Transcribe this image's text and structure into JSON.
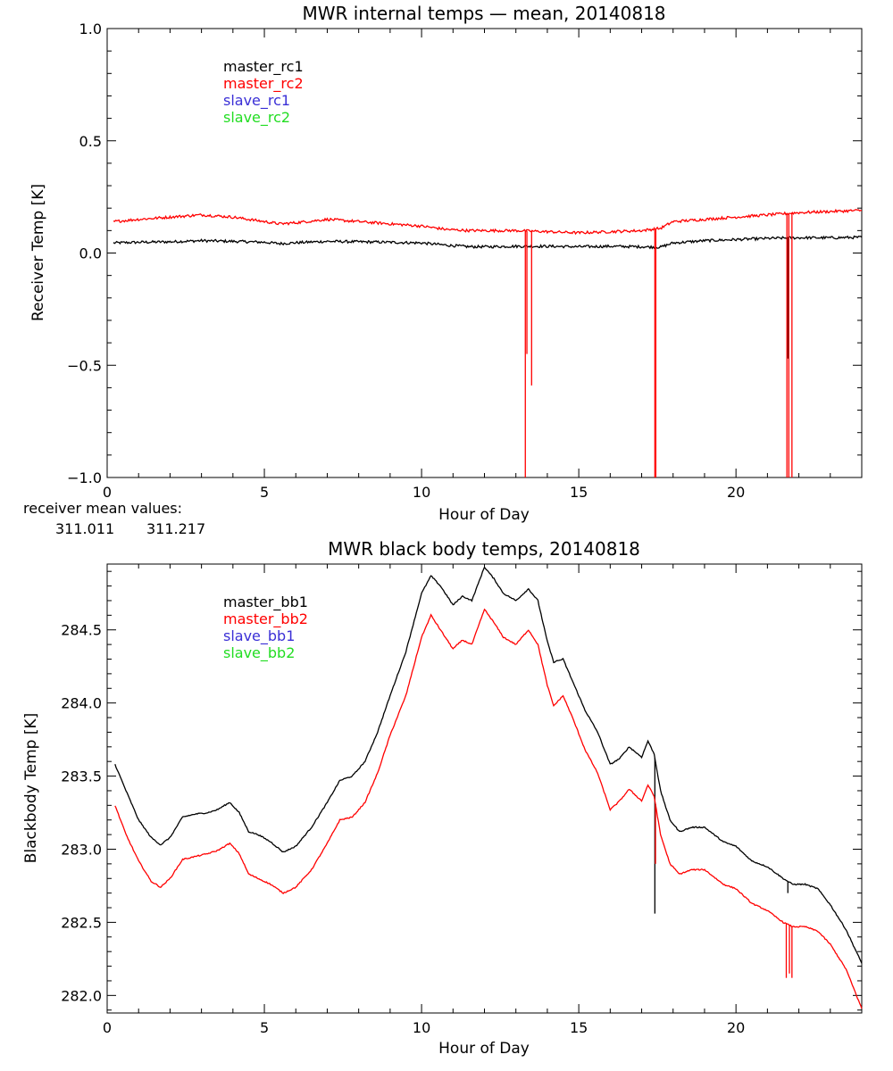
{
  "chart_data": [
    {
      "type": "line",
      "title": "MWR internal temps — mean, 20140818",
      "xlabel": "Hour of Day",
      "ylabel": "Receiver Temp [K]",
      "xlim": [
        0,
        24
      ],
      "ylim": [
        -1.0,
        1.0
      ],
      "x_ticks": [
        0,
        5,
        10,
        15,
        20
      ],
      "y_ticks": [
        -1.0,
        -0.5,
        0.0,
        0.5,
        1.0
      ],
      "y_tick_labels": [
        "−1.0",
        "−0.5",
        "0.0",
        "0.5",
        "1.0"
      ],
      "legend": [
        {
          "label": "master_rc1",
          "color": "#000000"
        },
        {
          "label": "master_rc2",
          "color": "#ff0000"
        },
        {
          "label": "slave_rc1",
          "color": "#3a2fd6"
        },
        {
          "label": "slave_rc2",
          "color": "#22dd22"
        }
      ],
      "series": [
        {
          "name": "master_rc1",
          "color": "#000000",
          "x": [
            0.2,
            1,
            2,
            3,
            4,
            5,
            5.5,
            6,
            7,
            8,
            9,
            10,
            10.8,
            11.5,
            12,
            13,
            14,
            15,
            16,
            17,
            17.6,
            18,
            19,
            20,
            21,
            22,
            23,
            24
          ],
          "y": [
            0.045,
            0.048,
            0.05,
            0.055,
            0.052,
            0.048,
            0.042,
            0.046,
            0.052,
            0.05,
            0.048,
            0.045,
            0.035,
            0.028,
            0.028,
            0.03,
            0.03,
            0.028,
            0.03,
            0.028,
            0.026,
            0.045,
            0.055,
            0.06,
            0.065,
            0.068,
            0.068,
            0.07
          ],
          "spikes": [
            {
              "x": 21.65,
              "y": -0.47
            }
          ]
        },
        {
          "name": "master_rc2",
          "color": "#ff0000",
          "x": [
            0.2,
            1,
            2,
            3,
            4,
            5,
            5.5,
            6,
            7,
            8,
            9,
            10,
            10.8,
            11.5,
            12,
            13,
            14,
            15,
            16,
            17,
            17.6,
            18,
            19,
            20,
            21,
            22,
            23,
            24
          ],
          "y": [
            0.14,
            0.15,
            0.16,
            0.17,
            0.16,
            0.14,
            0.13,
            0.135,
            0.15,
            0.14,
            0.13,
            0.12,
            0.105,
            0.1,
            0.1,
            0.1,
            0.095,
            0.09,
            0.095,
            0.1,
            0.11,
            0.14,
            0.15,
            0.16,
            0.17,
            0.18,
            0.185,
            0.19
          ],
          "spikes": [
            {
              "x": 13.3,
              "y": -1.0
            },
            {
              "x": 13.35,
              "y": -0.45
            },
            {
              "x": 13.5,
              "y": -0.59
            },
            {
              "x": 17.42,
              "y": -1.0
            },
            {
              "x": 17.45,
              "y": -1.0
            },
            {
              "x": 21.62,
              "y": -1.0
            },
            {
              "x": 21.68,
              "y": -1.0
            },
            {
              "x": 21.78,
              "y": -1.0
            }
          ]
        }
      ]
    },
    {
      "type": "line",
      "title": "MWR black body temps, 20140818",
      "xlabel": "Hour of Day",
      "ylabel": "Blackbody Temp [K]",
      "xlim": [
        0,
        24
      ],
      "ylim": [
        281.88,
        284.95
      ],
      "x_ticks": [
        0,
        5,
        10,
        15,
        20
      ],
      "y_ticks": [
        282.0,
        282.5,
        283.0,
        283.5,
        284.0,
        284.5
      ],
      "y_tick_labels": [
        "282.0",
        "282.5",
        "283.0",
        "283.5",
        "284.0",
        "284.5"
      ],
      "legend": [
        {
          "label": "master_bb1",
          "color": "#000000"
        },
        {
          "label": "master_bb2",
          "color": "#ff0000"
        },
        {
          "label": "slave_bb1",
          "color": "#3a2fd6"
        },
        {
          "label": "slave_bb2",
          "color": "#22dd22"
        }
      ],
      "series": [
        {
          "name": "master_bb1",
          "color": "#000000",
          "x": [
            0.25,
            0.6,
            1,
            1.4,
            1.7,
            2,
            2.4,
            2.8,
            3.2,
            3.5,
            3.9,
            4.2,
            4.5,
            4.8,
            5.2,
            5.6,
            6,
            6.5,
            7,
            7.4,
            7.8,
            8.2,
            8.6,
            9,
            9.5,
            10,
            10.3,
            10.6,
            11,
            11.3,
            11.6,
            12,
            12.3,
            12.6,
            13,
            13.4,
            13.7,
            14,
            14.2,
            14.5,
            14.8,
            15.2,
            15.6,
            16,
            16.3,
            16.6,
            17,
            17.2,
            17.4,
            17.6,
            17.9,
            18.2,
            18.6,
            19,
            19.3,
            19.6,
            20,
            20.5,
            21,
            21.5,
            21.8,
            22.2,
            22.6,
            23,
            23.5,
            24
          ],
          "y": [
            283.58,
            283.4,
            283.2,
            283.08,
            283.03,
            283.08,
            283.22,
            283.24,
            283.25,
            283.27,
            283.32,
            283.25,
            283.12,
            283.1,
            283.05,
            282.98,
            283.02,
            283.15,
            283.32,
            283.47,
            283.5,
            283.6,
            283.8,
            284.05,
            284.35,
            284.75,
            284.87,
            284.8,
            284.67,
            284.73,
            284.7,
            284.93,
            284.85,
            284.75,
            284.7,
            284.78,
            284.7,
            284.42,
            284.28,
            284.3,
            284.15,
            283.95,
            283.8,
            283.58,
            283.62,
            283.7,
            283.63,
            283.74,
            283.65,
            283.4,
            283.2,
            283.12,
            283.15,
            283.15,
            283.1,
            283.05,
            283.02,
            282.92,
            282.88,
            282.8,
            282.76,
            282.76,
            282.73,
            282.62,
            282.45,
            282.22
          ],
          "spikes": [
            {
              "x": 17.42,
              "y": 282.56
            },
            {
              "x": 21.65,
              "y": 282.7
            }
          ]
        },
        {
          "name": "master_bb2",
          "color": "#ff0000",
          "x": [
            0.25,
            0.6,
            1,
            1.4,
            1.7,
            2,
            2.4,
            2.8,
            3.2,
            3.5,
            3.9,
            4.2,
            4.5,
            4.8,
            5.2,
            5.6,
            6,
            6.5,
            7,
            7.4,
            7.8,
            8.2,
            8.6,
            9,
            9.5,
            10,
            10.3,
            10.6,
            11,
            11.3,
            11.6,
            12,
            12.3,
            12.6,
            13,
            13.4,
            13.7,
            14,
            14.2,
            14.5,
            14.8,
            15.2,
            15.6,
            16,
            16.3,
            16.6,
            17,
            17.2,
            17.4,
            17.6,
            17.9,
            18.2,
            18.6,
            19,
            19.3,
            19.6,
            20,
            20.5,
            21,
            21.5,
            21.8,
            22.2,
            22.6,
            23,
            23.5,
            24
          ],
          "y": [
            283.3,
            283.1,
            282.92,
            282.78,
            282.74,
            282.8,
            282.93,
            282.95,
            282.97,
            282.99,
            283.04,
            282.97,
            282.83,
            282.8,
            282.76,
            282.7,
            282.74,
            282.86,
            283.04,
            283.2,
            283.22,
            283.32,
            283.52,
            283.78,
            284.05,
            284.45,
            284.6,
            284.5,
            284.37,
            284.43,
            284.4,
            284.64,
            284.55,
            284.45,
            284.4,
            284.5,
            284.4,
            284.12,
            283.98,
            284.05,
            283.9,
            283.68,
            283.52,
            283.27,
            283.33,
            283.41,
            283.33,
            283.44,
            283.36,
            283.1,
            282.9,
            282.83,
            282.86,
            282.86,
            282.81,
            282.76,
            282.73,
            282.63,
            282.58,
            282.5,
            282.47,
            282.47,
            282.44,
            282.35,
            282.18,
            281.91
          ],
          "spikes": [
            {
              "x": 17.44,
              "y": 282.9
            },
            {
              "x": 21.6,
              "y": 282.12
            },
            {
              "x": 21.7,
              "y": 282.15
            },
            {
              "x": 21.78,
              "y": 282.12
            }
          ]
        }
      ],
      "note_label": "receiver mean values:",
      "note_values": [
        "311.011",
        "311.217"
      ]
    }
  ],
  "colors": {
    "black": "#000000",
    "red": "#ff0000",
    "blue": "#3a2fd6",
    "green": "#22dd22"
  }
}
